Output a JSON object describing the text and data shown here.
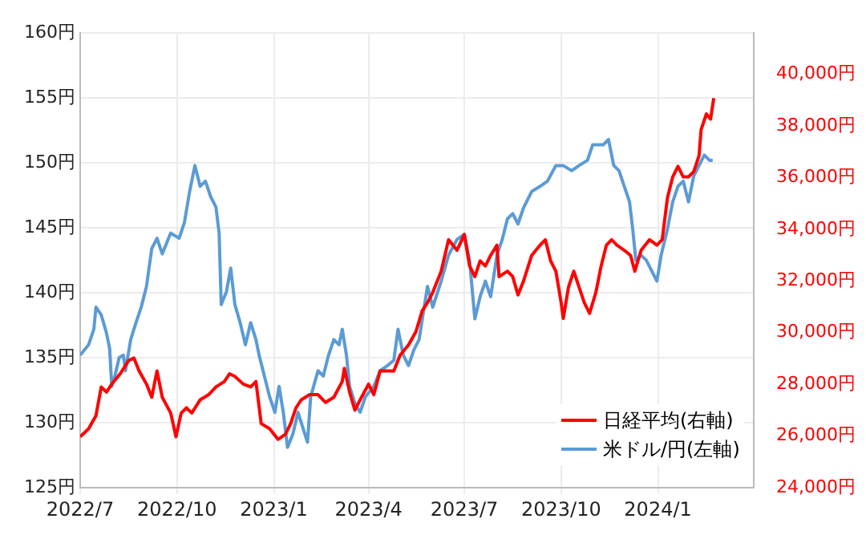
{
  "chart_data": {
    "type": "line",
    "xlim": [
      "2022-07-01",
      "2024-04-01"
    ],
    "xticks": [
      {
        "value": "2022-07",
        "label": "2022/7"
      },
      {
        "value": "2022-10",
        "label": "2022/10"
      },
      {
        "value": "2023-01",
        "label": "2023/1"
      },
      {
        "value": "2023-04",
        "label": "2023/4"
      },
      {
        "value": "2023-07",
        "label": "2023/7"
      },
      {
        "value": "2023-10",
        "label": "2023/10"
      },
      {
        "value": "2024-01",
        "label": "2024/1"
      }
    ],
    "ylim": [
      125,
      160
    ],
    "yticks": [
      {
        "value": 125,
        "label": "125円"
      },
      {
        "value": 130,
        "label": "130円"
      },
      {
        "value": 135,
        "label": "135円"
      },
      {
        "value": 140,
        "label": "140円"
      },
      {
        "value": 145,
        "label": "145円"
      },
      {
        "value": 150,
        "label": "150円"
      },
      {
        "value": 155,
        "label": "155円"
      },
      {
        "value": 160,
        "label": "160円"
      }
    ],
    "y2lim": [
      24000,
      41600
    ],
    "y2ticks": [
      {
        "value": 24000,
        "label": "24,000円"
      },
      {
        "value": 26000,
        "label": "26,000円"
      },
      {
        "value": 28000,
        "label": "28,000円"
      },
      {
        "value": 30000,
        "label": "30,000円"
      },
      {
        "value": 32000,
        "label": "32,000円"
      },
      {
        "value": 34000,
        "label": "34,000円"
      },
      {
        "value": 36000,
        "label": "36,000円"
      },
      {
        "value": 38000,
        "label": "38,000円"
      },
      {
        "value": 40000,
        "label": "40,000円"
      }
    ],
    "grid": true,
    "legend": "bottom right",
    "marker": "none",
    "line_style": "solid",
    "series": [
      {
        "name": "日経平均(右軸)",
        "color": "#ff0000",
        "axis": "y2",
        "x": [
          "2022-07-01",
          "2022-07-09",
          "2022-07-16",
          "2022-07-21",
          "2022-07-26",
          "2022-07-31",
          "2022-08-08",
          "2022-08-16",
          "2022-08-21",
          "2022-08-26",
          "2022-09-02",
          "2022-09-07",
          "2022-09-12",
          "2022-09-17",
          "2022-09-25",
          "2022-09-30",
          "2022-10-05",
          "2022-10-10",
          "2022-10-15",
          "2022-10-23",
          "2022-10-31",
          "2022-11-07",
          "2022-11-15",
          "2022-11-20",
          "2022-11-25",
          "2022-12-03",
          "2022-12-10",
          "2022-12-15",
          "2022-12-20",
          "2022-12-28",
          "2023-01-05",
          "2023-01-12",
          "2023-01-17",
          "2023-01-22",
          "2023-01-27",
          "2023-02-04",
          "2023-02-12",
          "2023-02-19",
          "2023-02-27",
          "2023-03-07",
          "2023-03-09",
          "2023-03-14",
          "2023-03-19",
          "2023-03-24",
          "2023-04-01",
          "2023-04-06",
          "2023-04-12",
          "2023-04-19",
          "2023-04-25",
          "2023-05-01",
          "2023-05-09",
          "2023-05-16",
          "2023-05-22",
          "2023-05-27",
          "2023-06-01",
          "2023-06-09",
          "2023-06-16",
          "2023-06-24",
          "2023-07-01",
          "2023-07-06",
          "2023-07-11",
          "2023-07-16",
          "2023-07-21",
          "2023-07-26",
          "2023-08-01",
          "2023-08-03",
          "2023-08-11",
          "2023-08-16",
          "2023-08-21",
          "2023-08-26",
          "2023-09-03",
          "2023-09-11",
          "2023-09-16",
          "2023-09-21",
          "2023-09-26",
          "2023-10-01",
          "2023-10-03",
          "2023-10-08",
          "2023-10-13",
          "2023-10-18",
          "2023-10-23",
          "2023-10-28",
          "2023-11-03",
          "2023-11-08",
          "2023-11-13",
          "2023-11-18",
          "2023-11-23",
          "2023-11-30",
          "2023-12-06",
          "2023-12-10",
          "2023-12-16",
          "2023-12-24",
          "2023-12-31",
          "2024-01-05",
          "2024-01-10",
          "2024-01-15",
          "2024-01-20",
          "2024-01-25",
          "2024-01-30",
          "2024-02-04",
          "2024-02-09",
          "2024-02-11",
          "2024-02-16",
          "2024-02-20",
          "2024-02-23"
        ],
        "values": [
          25970,
          26280,
          26790,
          27900,
          27700,
          28010,
          28410,
          28920,
          29020,
          28520,
          28010,
          27500,
          28520,
          27500,
          26890,
          25970,
          26890,
          27090,
          26890,
          27400,
          27600,
          27900,
          28110,
          28410,
          28310,
          28010,
          27900,
          28110,
          26480,
          26280,
          25870,
          26070,
          26480,
          27090,
          27400,
          27600,
          27600,
          27300,
          27500,
          28110,
          28620,
          27700,
          27000,
          27400,
          28010,
          27600,
          28520,
          28520,
          28520,
          29130,
          29530,
          30040,
          30850,
          31160,
          31560,
          32380,
          33600,
          33190,
          33800,
          32580,
          32170,
          32780,
          32580,
          32990,
          33390,
          32170,
          32380,
          32170,
          31460,
          31970,
          32990,
          33390,
          33600,
          32780,
          32380,
          31160,
          30550,
          31770,
          32380,
          31770,
          31160,
          30750,
          31560,
          32580,
          33390,
          33600,
          33390,
          33190,
          32990,
          32380,
          33190,
          33600,
          33390,
          33600,
          35220,
          36030,
          36440,
          36030,
          36030,
          36240,
          36850,
          37860,
          38470,
          38270,
          39080
        ]
      },
      {
        "name": "米ドル/円(左軸)",
        "color": "#5b9bd5",
        "x": [
          "2022-07-01",
          "2022-07-09",
          "2022-07-14",
          "2022-07-16",
          "2022-07-21",
          "2022-07-26",
          "2022-07-29",
          "2022-07-31",
          "2022-08-03",
          "2022-08-07",
          "2022-08-11",
          "2022-08-13",
          "2022-08-18",
          "2022-08-23",
          "2022-08-28",
          "2022-09-02",
          "2022-09-07",
          "2022-09-12",
          "2022-09-17",
          "2022-09-25",
          "2022-10-03",
          "2022-10-08",
          "2022-10-13",
          "2022-10-18",
          "2022-10-23",
          "2022-10-28",
          "2022-11-02",
          "2022-11-07",
          "2022-11-10",
          "2022-11-12",
          "2022-11-17",
          "2022-11-21",
          "2022-11-25",
          "2022-11-30",
          "2022-12-05",
          "2022-12-10",
          "2022-12-15",
          "2022-12-18",
          "2022-12-23",
          "2022-12-28",
          "2023-01-02",
          "2023-01-06",
          "2023-01-10",
          "2023-01-14",
          "2023-01-19",
          "2023-01-24",
          "2023-01-29",
          "2023-02-02",
          "2023-02-05",
          "2023-02-12",
          "2023-02-17",
          "2023-02-22",
          "2023-02-27",
          "2023-03-04",
          "2023-03-07",
          "2023-03-11",
          "2023-03-14",
          "2023-03-19",
          "2023-03-24",
          "2023-03-29",
          "2023-04-06",
          "2023-04-12",
          "2023-04-19",
          "2023-04-25",
          "2023-04-29",
          "2023-05-04",
          "2023-05-09",
          "2023-05-14",
          "2023-05-19",
          "2023-05-27",
          "2023-06-01",
          "2023-06-09",
          "2023-06-16",
          "2023-06-24",
          "2023-07-01",
          "2023-07-06",
          "2023-07-11",
          "2023-07-16",
          "2023-07-21",
          "2023-07-26",
          "2023-08-01",
          "2023-08-06",
          "2023-08-11",
          "2023-08-16",
          "2023-08-21",
          "2023-08-26",
          "2023-09-03",
          "2023-09-11",
          "2023-09-18",
          "2023-09-26",
          "2023-10-03",
          "2023-10-11",
          "2023-10-18",
          "2023-10-26",
          "2023-10-31",
          "2023-11-05",
          "2023-11-10",
          "2023-11-15",
          "2023-11-20",
          "2023-11-25",
          "2023-11-30",
          "2023-12-05",
          "2023-12-08",
          "2023-12-11",
          "2023-12-16",
          "2023-12-21",
          "2023-12-26",
          "2023-12-31",
          "2024-01-04",
          "2024-01-10",
          "2024-01-15",
          "2024-01-20",
          "2024-01-25",
          "2024-01-30",
          "2024-02-04",
          "2024-02-09",
          "2024-02-14",
          "2024-02-19",
          "2024-02-22"
        ],
        "values": [
          135.2,
          136.0,
          137.2,
          138.9,
          138.3,
          136.9,
          135.7,
          132.8,
          133.6,
          135.0,
          135.2,
          134.0,
          136.4,
          137.7,
          138.9,
          140.5,
          143.4,
          144.2,
          143.0,
          144.6,
          144.2,
          145.4,
          147.8,
          149.8,
          148.2,
          148.6,
          147.4,
          146.6,
          144.6,
          139.1,
          140.1,
          141.9,
          139.1,
          137.7,
          136.0,
          137.7,
          136.4,
          135.2,
          133.6,
          132.0,
          130.8,
          132.8,
          130.8,
          128.1,
          129.1,
          130.8,
          129.5,
          128.5,
          132.0,
          134.0,
          133.6,
          135.2,
          136.4,
          136.0,
          137.2,
          135.2,
          132.8,
          131.5,
          130.8,
          132.0,
          132.8,
          134.0,
          134.4,
          134.8,
          137.2,
          135.2,
          134.4,
          135.6,
          136.4,
          140.5,
          138.9,
          140.9,
          142.9,
          144.1,
          144.5,
          142.5,
          138.0,
          139.7,
          140.9,
          139.7,
          142.9,
          144.1,
          145.7,
          146.1,
          145.3,
          146.5,
          147.8,
          148.2,
          148.6,
          149.8,
          149.8,
          149.4,
          149.8,
          150.2,
          151.4,
          151.4,
          151.4,
          151.8,
          149.8,
          149.4,
          148.2,
          147.0,
          144.9,
          142.5,
          142.9,
          142.5,
          141.7,
          140.9,
          142.9,
          144.9,
          147.0,
          148.2,
          148.6,
          147.0,
          149.0,
          149.8,
          150.6,
          150.2,
          150.2
        ]
      }
    ]
  }
}
